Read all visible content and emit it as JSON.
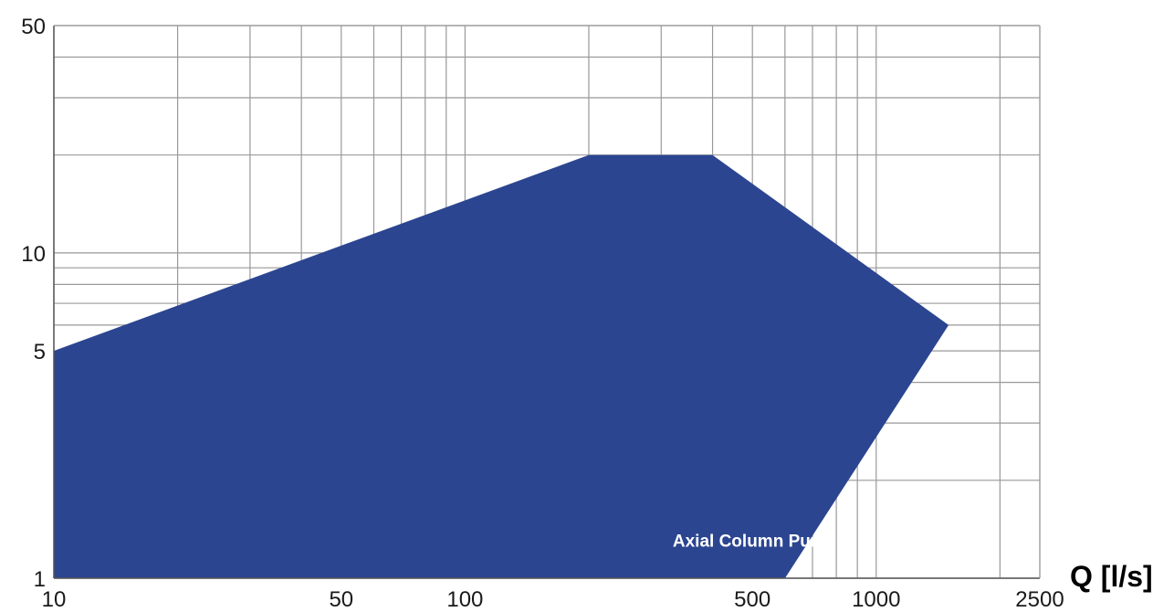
{
  "chart_data": {
    "type": "area",
    "title": "",
    "xlabel": "Q [l/s]",
    "ylabel": "",
    "x_scale": "log",
    "y_scale": "log",
    "xlim": [
      10,
      2500
    ],
    "ylim": [
      1,
      50
    ],
    "x_ticks": [
      10,
      50,
      100,
      500,
      1000,
      2500
    ],
    "x_tick_labels": [
      "10",
      "50",
      "100",
      "500",
      "1000",
      "2500"
    ],
    "y_ticks": [
      1,
      5,
      10,
      50
    ],
    "y_tick_labels": [
      "1",
      "5",
      "10",
      "50"
    ],
    "x_minor_grid": [
      20,
      30,
      40,
      60,
      70,
      80,
      90,
      200,
      300,
      400,
      600,
      700,
      800,
      900,
      2000
    ],
    "y_minor_grid": [
      2,
      3,
      4,
      6,
      7,
      8,
      9,
      20,
      30,
      40
    ],
    "grid": true,
    "fill_color": "#2b4590",
    "grid_color": "#999999",
    "series": [
      {
        "x": [
          10,
          10,
          200,
          400,
          1500,
          600
        ],
        "y": [
          1,
          5,
          20,
          20,
          6,
          1
        ]
      }
    ],
    "annotations": [
      {
        "text": "Axial Column Pump",
        "x": 320,
        "y": 1.25
      }
    ]
  }
}
